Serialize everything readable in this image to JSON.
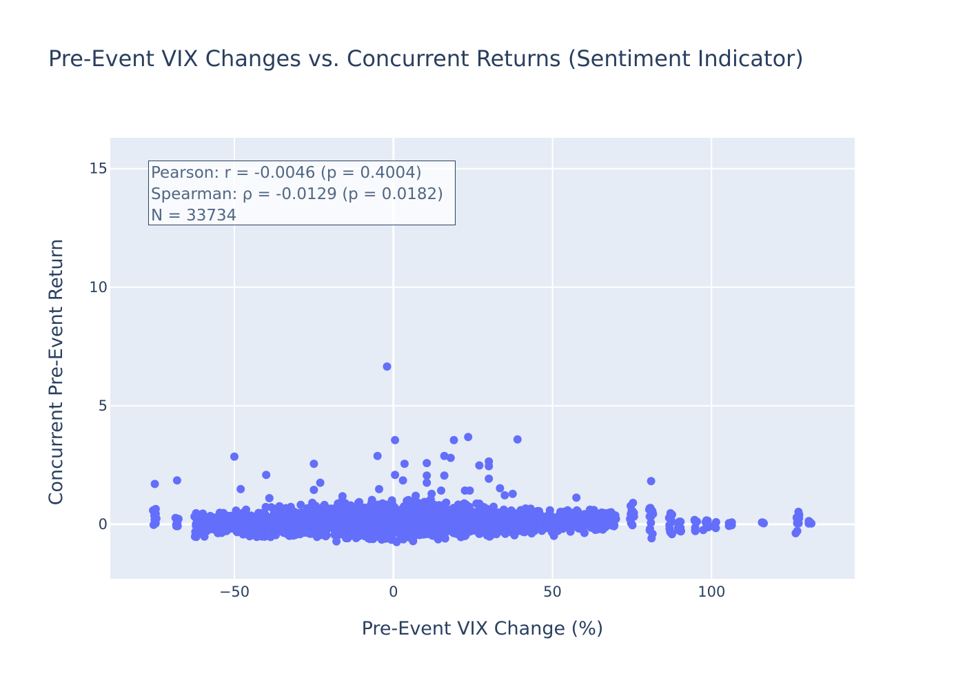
{
  "title": "Pre-Event VIX Changes vs. Concurrent Returns (Sentiment Indicator)",
  "annotation": {
    "pearson": "Pearson: r = -0.0046 (p = 0.4004)",
    "spearman": "Spearman: ρ = -0.0129 (p = 0.0182)",
    "n": "N = 33734"
  },
  "colors": {
    "marker": "#636efa",
    "plot_bg": "#e5ecf6",
    "grid": "#ffffff",
    "text": "#2a3f5f"
  },
  "chart_data": {
    "type": "scatter",
    "title": "Pre-Event VIX Changes vs. Concurrent Returns (Sentiment Indicator)",
    "xlabel": "Pre-Event VIX Change (%)",
    "ylabel": "Concurrent Pre-Event Return",
    "xlim": [
      -89,
      145
    ],
    "ylim": [
      -2.3,
      16.3
    ],
    "xticks": [
      -50,
      0,
      50,
      100
    ],
    "xtick_labels": [
      "−50",
      "0",
      "50",
      "100"
    ],
    "yticks": [
      0,
      5,
      10,
      15
    ],
    "ytick_labels": [
      "0",
      "5",
      "10",
      "15"
    ],
    "grid": true,
    "outliers": [
      [
        -2,
        6.65
      ],
      [
        23.5,
        3.68
      ],
      [
        19,
        3.55
      ],
      [
        0.5,
        3.55
      ],
      [
        39,
        3.58
      ],
      [
        -50,
        2.85
      ],
      [
        -5,
        2.88
      ],
      [
        16,
        2.88
      ],
      [
        18,
        2.8
      ],
      [
        3.5,
        2.55
      ],
      [
        10.5,
        2.58
      ],
      [
        -25,
        2.55
      ],
      [
        30,
        2.65
      ],
      [
        30,
        2.45
      ],
      [
        27,
        2.48
      ],
      [
        -40,
        2.08
      ],
      [
        0.5,
        2.08
      ],
      [
        16,
        2.05
      ],
      [
        10.5,
        2.05
      ],
      [
        30,
        1.92
      ],
      [
        -75,
        1.7
      ],
      [
        -68,
        1.85
      ],
      [
        -23,
        1.75
      ],
      [
        3,
        1.85
      ],
      [
        81,
        1.82
      ],
      [
        -48,
        1.48
      ],
      [
        -4.5,
        1.48
      ],
      [
        33.5,
        1.52
      ],
      [
        -25,
        1.45
      ],
      [
        22.5,
        1.42
      ],
      [
        24,
        1.42
      ],
      [
        15,
        1.42
      ],
      [
        37.5,
        1.28
      ],
      [
        35,
        1.22
      ],
      [
        -16,
        1.18
      ],
      [
        -39,
        1.1
      ],
      [
        57.5,
        1.12
      ],
      [
        7,
        1.2
      ],
      [
        10.5,
        1.75
      ],
      [
        12,
        1.28
      ]
    ],
    "band": [
      {
        "x": -75,
        "ymin": -0.1,
        "ymax": 0.65
      },
      {
        "x": -68,
        "ymin": -0.3,
        "ymax": 0.3
      },
      {
        "x": -62,
        "ymin": -0.65,
        "ymax": 0.5
      },
      {
        "x": -55,
        "ymin": -0.55,
        "ymax": 0.6
      },
      {
        "x": -45,
        "ymin": -0.75,
        "ymax": 0.85
      },
      {
        "x": -30,
        "ymin": -0.8,
        "ymax": 0.95
      },
      {
        "x": -15,
        "ymin": -0.85,
        "ymax": 1.1
      },
      {
        "x": 0,
        "ymin": -0.9,
        "ymax": 1.25
      },
      {
        "x": 15,
        "ymin": -0.8,
        "ymax": 1.1
      },
      {
        "x": 30,
        "ymin": -0.75,
        "ymax": 1.0
      },
      {
        "x": 45,
        "ymin": -0.6,
        "ymax": 0.85
      },
      {
        "x": 55,
        "ymin": -0.6,
        "ymax": 0.85
      },
      {
        "x": 65,
        "ymin": -0.35,
        "ymax": 0.75
      },
      {
        "x": 75,
        "ymin": -0.2,
        "ymax": 0.9
      },
      {
        "x": 81,
        "ymin": -0.6,
        "ymax": 0.8
      },
      {
        "x": 90,
        "ymin": -0.4,
        "ymax": 0.3
      },
      {
        "x": 101,
        "ymin": -0.2,
        "ymax": 0.15
      },
      {
        "x": 116,
        "ymin": 0.0,
        "ymax": 0.12
      },
      {
        "x": 127,
        "ymin": -0.4,
        "ymax": 0.55
      },
      {
        "x": 131,
        "ymin": 0.0,
        "ymax": 0.15
      }
    ],
    "discrete_columns": [
      -75,
      -68,
      -62,
      75,
      81,
      87,
      90,
      95,
      98,
      99,
      101,
      106,
      116,
      127,
      131
    ]
  }
}
